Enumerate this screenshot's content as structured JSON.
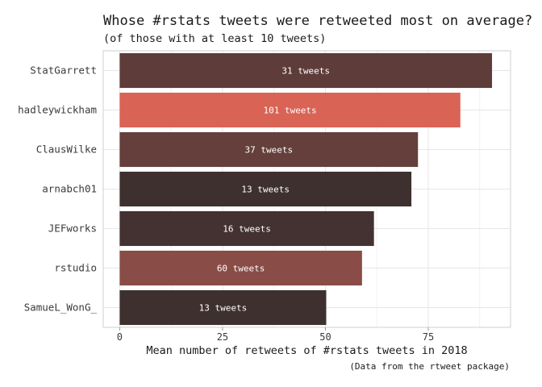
{
  "chart_data": {
    "type": "bar",
    "orientation": "horizontal",
    "title": "Whose #rstats tweets were retweeted most on average?",
    "subtitle": "(of those with at least 10 tweets)",
    "xlabel": "Mean number of retweets of #rstats tweets in 2018",
    "ylabel": "",
    "caption": "(Data from the rtweet package)",
    "xlim": [
      -4,
      95
    ],
    "x_ticks": [
      0,
      25,
      50,
      75
    ],
    "grid": true,
    "bar_label_suffix": " tweets",
    "categories": [
      "StatGarrett",
      "hadleywickham",
      "ClausWilke",
      "arnabch01",
      "JEFworks",
      "rstudio",
      "SamueL_WonG_"
    ],
    "values": [
      90.5,
      82.8,
      72.5,
      70.9,
      61.8,
      58.9,
      50.2
    ],
    "tweet_counts": [
      31,
      101,
      37,
      13,
      16,
      60,
      13
    ],
    "colors": [
      "#5e3c39",
      "#d96355",
      "#653f3b",
      "#3e302f",
      "#433231",
      "#894c46",
      "#3e302f"
    ],
    "color_scale": {
      "low": "#3e302f",
      "high": "#d96355",
      "encodes": "tweet_counts"
    }
  }
}
